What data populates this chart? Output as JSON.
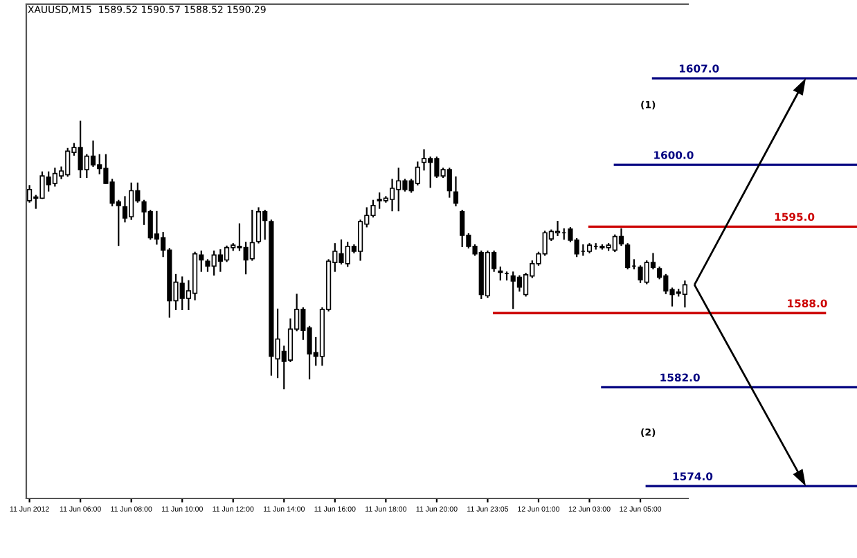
{
  "chart_data": {
    "type": "candlestick",
    "title": "XAUUSD,M15  1589.52 1590.57 1588.52 1590.29",
    "categories": [
      "11 Jun 2012",
      null,
      null,
      null,
      null,
      null,
      null,
      null,
      "11 Jun 06:00",
      null,
      null,
      null,
      null,
      null,
      null,
      null,
      "11 Jun 08:00",
      null,
      null,
      null,
      null,
      null,
      null,
      null,
      "11 Jun 10:00",
      null,
      null,
      null,
      null,
      null,
      null,
      null,
      "11 Jun 12:00",
      null,
      null,
      null,
      null,
      null,
      null,
      null,
      "11 Jun 14:00",
      null,
      null,
      null,
      null,
      null,
      null,
      null,
      "11 Jun 16:00",
      null,
      null,
      null,
      null,
      null,
      null,
      null,
      "11 Jun 18:00",
      null,
      null,
      null,
      null,
      null,
      null,
      null,
      "11 Jun 20:00",
      null,
      null,
      null,
      null,
      null,
      null,
      null,
      "11 Jun 23:05",
      null,
      null,
      null,
      null,
      null,
      null,
      null,
      "12 Jun 01:00",
      null,
      null,
      null,
      null,
      null,
      null,
      null,
      "12 Jun 03:00",
      null,
      null,
      null,
      null,
      null,
      null,
      null,
      "12 Jun 05:00",
      null,
      null,
      null,
      null,
      null,
      null,
      null
    ],
    "ohlc": [
      [
        1597.1,
        1598.3,
        1597.0,
        1598.0
      ],
      [
        1597.4,
        1597.5,
        1596.5,
        1597.3
      ],
      [
        1597.3,
        1599.4,
        1597.3,
        1599.1
      ],
      [
        1599.0,
        1599.4,
        1597.9,
        1598.4
      ],
      [
        1598.5,
        1599.7,
        1598.3,
        1599.3
      ],
      [
        1599.1,
        1599.8,
        1598.9,
        1599.5
      ],
      [
        1599.2,
        1601.3,
        1599.1,
        1601.1
      ],
      [
        1601.0,
        1601.7,
        1600.8,
        1601.4
      ],
      [
        1601.4,
        1603.5,
        1599.0,
        1599.6
      ],
      [
        1599.6,
        1600.8,
        1599.0,
        1600.7
      ],
      [
        1600.7,
        1601.9,
        1599.9,
        1600.0
      ],
      [
        1600.0,
        1600.8,
        1599.3,
        1599.7
      ],
      [
        1599.7,
        1600.8,
        1598.5,
        1598.5
      ],
      [
        1598.6,
        1598.8,
        1596.7,
        1596.9
      ],
      [
        1597.0,
        1597.1,
        1593.5,
        1596.7
      ],
      [
        1596.6,
        1597.4,
        1595.4,
        1595.7
      ],
      [
        1595.8,
        1598.5,
        1595.6,
        1597.9
      ],
      [
        1597.9,
        1598.5,
        1597.0,
        1597.1
      ],
      [
        1597.0,
        1597.1,
        1595.2,
        1596.2
      ],
      [
        1596.2,
        1596.3,
        1594.0,
        1594.1
      ],
      [
        1594.4,
        1596.2,
        1593.6,
        1594.0
      ],
      [
        1594.1,
        1594.5,
        1592.6,
        1593.1
      ],
      [
        1593.1,
        1593.2,
        1587.7,
        1589.0
      ],
      [
        1589.0,
        1591.1,
        1588.3,
        1590.5
      ],
      [
        1590.4,
        1590.9,
        1588.3,
        1589.2
      ],
      [
        1589.2,
        1590.6,
        1588.3,
        1589.8
      ],
      [
        1589.6,
        1592.9,
        1589.1,
        1592.8
      ],
      [
        1592.7,
        1593.0,
        1591.4,
        1592.3
      ],
      [
        1592.2,
        1592.3,
        1591.4,
        1591.8
      ],
      [
        1591.8,
        1593.0,
        1591.1,
        1592.7
      ],
      [
        1592.7,
        1593.1,
        1591.4,
        1592.2
      ],
      [
        1592.3,
        1593.4,
        1592.2,
        1593.3
      ],
      [
        1593.3,
        1593.6,
        1593.1,
        1593.5
      ],
      [
        1593.4,
        1595.2,
        1593.1,
        1593.3
      ],
      [
        1593.3,
        1593.7,
        1591.2,
        1592.3
      ],
      [
        1592.4,
        1596.3,
        1592.3,
        1593.7
      ],
      [
        1593.8,
        1596.5,
        1593.7,
        1596.2
      ],
      [
        1596.2,
        1596.3,
        1594.0,
        1595.5
      ],
      [
        1595.4,
        1595.5,
        1583.0,
        1584.5
      ],
      [
        1584.3,
        1588.3,
        1582.8,
        1585.9
      ],
      [
        1584.9,
        1585.3,
        1581.9,
        1584.1
      ],
      [
        1584.2,
        1587.5,
        1584.1,
        1586.7
      ],
      [
        1586.7,
        1589.5,
        1586.6,
        1588.3
      ],
      [
        1588.3,
        1588.4,
        1585.9,
        1586.6
      ],
      [
        1586.8,
        1586.9,
        1582.7,
        1584.7
      ],
      [
        1584.8,
        1586.0,
        1583.8,
        1584.5
      ],
      [
        1584.5,
        1588.4,
        1583.8,
        1588.3
      ],
      [
        1588.3,
        1592.3,
        1588.2,
        1592.2
      ],
      [
        1592.1,
        1593.6,
        1591.4,
        1593.0
      ],
      [
        1592.8,
        1593.9,
        1592.0,
        1592.1
      ],
      [
        1592.0,
        1593.7,
        1591.8,
        1593.4
      ],
      [
        1593.4,
        1593.5,
        1592.9,
        1593.0
      ],
      [
        1593.0,
        1595.5,
        1592.3,
        1595.4
      ],
      [
        1595.2,
        1596.5,
        1595.0,
        1595.9
      ],
      [
        1595.9,
        1597.1,
        1595.8,
        1596.7
      ],
      [
        1597.2,
        1597.7,
        1596.5,
        1597.1
      ],
      [
        1597.1,
        1597.4,
        1597.0,
        1597.3
      ],
      [
        1597.2,
        1598.8,
        1596.3,
        1598.1
      ],
      [
        1598.0,
        1599.7,
        1596.3,
        1598.7
      ],
      [
        1598.7,
        1598.8,
        1597.9,
        1598.0
      ],
      [
        1598.7,
        1598.8,
        1597.8,
        1597.9
      ],
      [
        1598.5,
        1600.2,
        1598.4,
        1599.8
      ],
      [
        1600.2,
        1601.2,
        1599.6,
        1600.5
      ],
      [
        1600.5,
        1600.6,
        1598.2,
        1600.2
      ],
      [
        1600.5,
        1600.6,
        1599.0,
        1599.1
      ],
      [
        1599.1,
        1599.7,
        1599.0,
        1599.6
      ],
      [
        1599.6,
        1599.7,
        1597.4,
        1597.9
      ],
      [
        1597.8,
        1599.0,
        1596.7,
        1596.9
      ],
      [
        1596.2,
        1596.3,
        1593.4,
        1594.3
      ],
      [
        1594.3,
        1594.4,
        1593.3,
        1593.4
      ],
      [
        1593.4,
        1593.5,
        1592.7,
        1592.8
      ],
      [
        1592.9,
        1593.0,
        1589.2,
        1589.5
      ],
      [
        1589.4,
        1593.0,
        1589.3,
        1592.9
      ],
      [
        1592.9,
        1593.0,
        1591.4,
        1591.6
      ],
      [
        1591.3,
        1591.7,
        1590.7,
        1591.4
      ],
      [
        1591.2,
        1591.3,
        1590.7,
        1591.2
      ],
      [
        1591.0,
        1591.3,
        1588.4,
        1590.6
      ],
      [
        1590.9,
        1591.0,
        1589.8,
        1590.1
      ],
      [
        1589.5,
        1591.2,
        1589.4,
        1591.1
      ],
      [
        1591.0,
        1592.2,
        1590.9,
        1592.0
      ],
      [
        1592.0,
        1592.9,
        1591.9,
        1592.8
      ],
      [
        1592.8,
        1594.6,
        1592.7,
        1594.5
      ],
      [
        1594.0,
        1594.7,
        1593.9,
        1594.6
      ],
      [
        1594.5,
        1595.4,
        1594.3,
        1594.6
      ],
      [
        1594.5,
        1594.8,
        1594.0,
        1594.5
      ],
      [
        1594.8,
        1594.9,
        1593.8,
        1593.9
      ],
      [
        1593.9,
        1594.0,
        1592.6,
        1592.8
      ],
      [
        1593.0,
        1593.5,
        1592.7,
        1593.0
      ],
      [
        1593.0,
        1593.6,
        1592.9,
        1593.5
      ],
      [
        1593.4,
        1593.6,
        1593.2,
        1593.4
      ],
      [
        1593.4,
        1593.5,
        1593.2,
        1593.3
      ],
      [
        1593.3,
        1593.6,
        1593.1,
        1593.5
      ],
      [
        1593.1,
        1594.3,
        1593.0,
        1594.2
      ],
      [
        1594.2,
        1594.8,
        1593.5,
        1593.6
      ],
      [
        1593.5,
        1593.6,
        1591.6,
        1591.7
      ],
      [
        1591.8,
        1592.3,
        1591.6,
        1591.8
      ],
      [
        1591.7,
        1591.8,
        1590.5,
        1590.7
      ],
      [
        1590.5,
        1592.2,
        1590.4,
        1592.1
      ],
      [
        1592.1,
        1592.8,
        1591.6,
        1591.7
      ],
      [
        1591.6,
        1591.7,
        1590.8,
        1590.9
      ],
      [
        1591.0,
        1591.1,
        1589.6,
        1589.8
      ],
      [
        1589.9,
        1590.0,
        1588.6,
        1589.5
      ],
      [
        1589.6,
        1589.9,
        1589.4,
        1589.7
      ],
      [
        1589.52,
        1590.57,
        1588.52,
        1590.29
      ]
    ],
    "ylim": [
      1573,
      1613
    ],
    "tick_labels": "x",
    "ref_lines": [
      {
        "axis": "y",
        "value": 1607.0,
        "label": "1607.0",
        "color": "#000080"
      },
      {
        "axis": "y",
        "value": 1600.0,
        "label": "1600.0",
        "color": "#000080"
      },
      {
        "axis": "y",
        "value": 1595.0,
        "label": "1595.0",
        "color": "#cc0000"
      },
      {
        "axis": "y",
        "value": 1588.0,
        "label": "1588.0",
        "color": "#cc0000"
      },
      {
        "axis": "y",
        "value": 1582.0,
        "label": "1582.0",
        "color": "#000080"
      },
      {
        "axis": "y",
        "value": 1574.0,
        "label": "1574.0",
        "color": "#000080"
      }
    ],
    "annotations": [
      "(1)",
      "(2)"
    ]
  }
}
